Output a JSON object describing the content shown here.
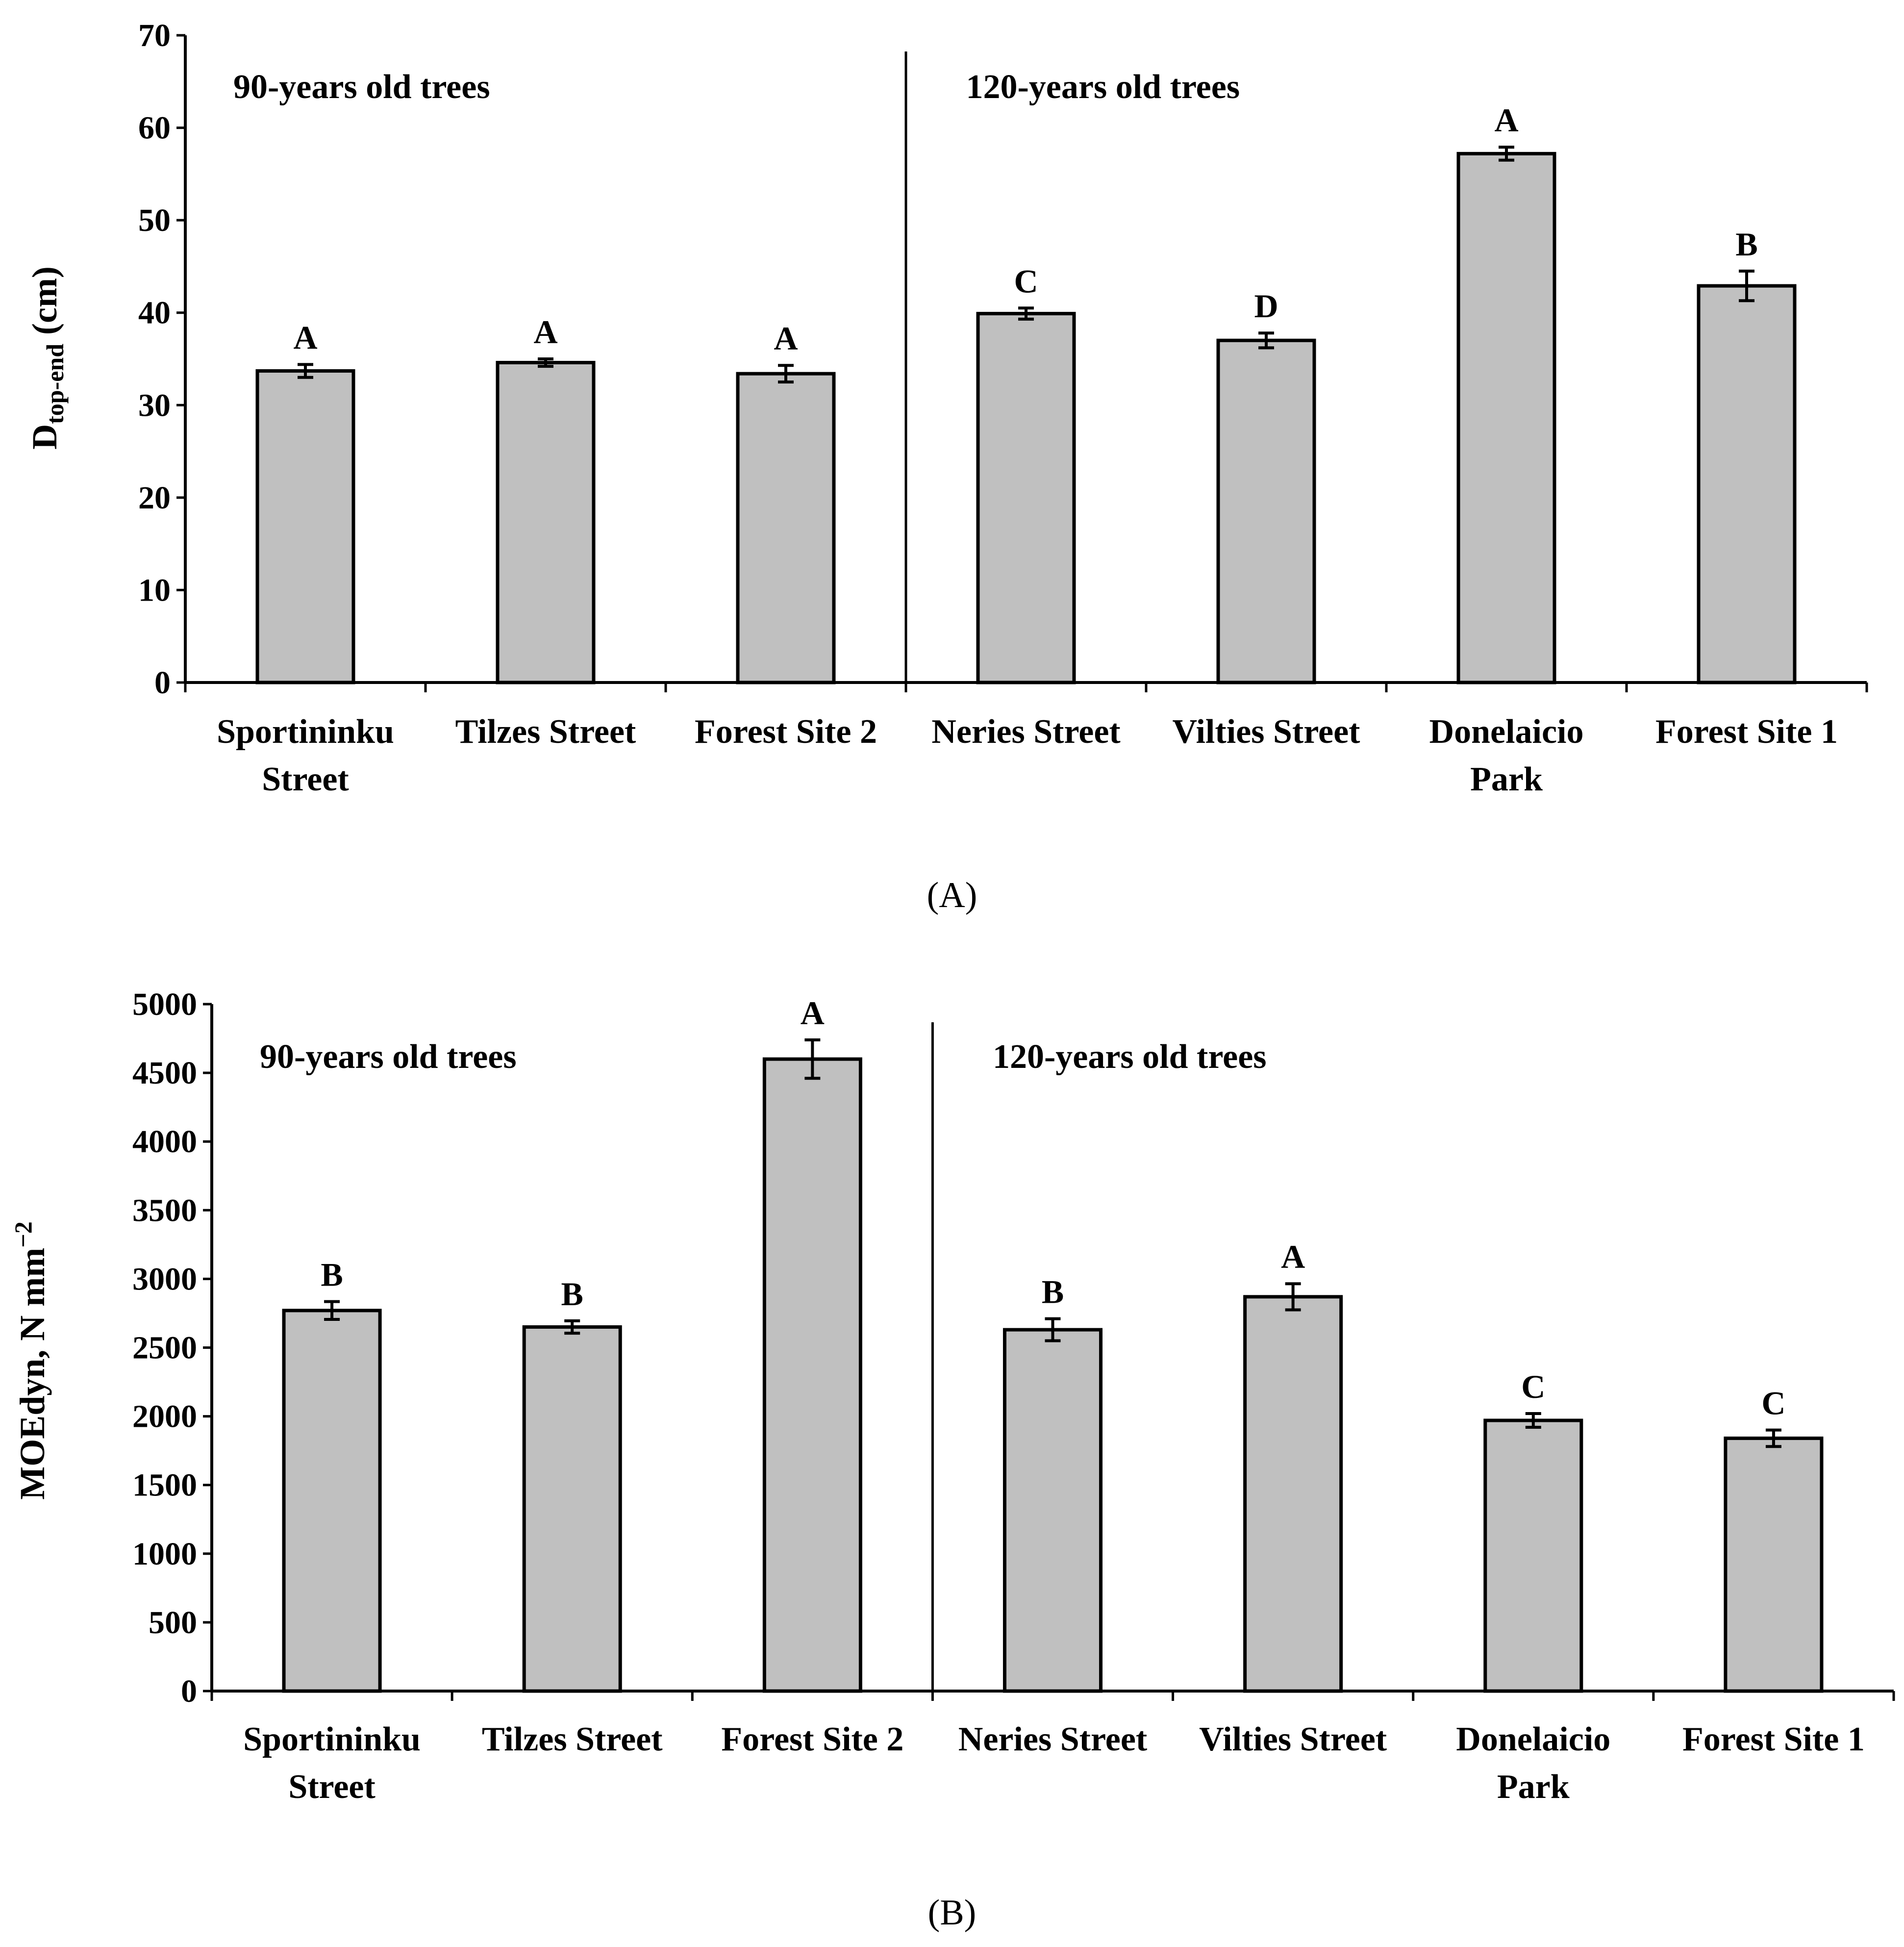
{
  "chart_data": [
    {
      "type": "bar",
      "panel_label": "(A)",
      "ylabel": "D",
      "ylabel_sub": "top-end",
      "ylabel_suffix": " (cm)",
      "ylim": [
        0,
        70
      ],
      "yticks": [
        0,
        10,
        20,
        30,
        40,
        50,
        60,
        70
      ],
      "groups": [
        {
          "label": "90-years old trees",
          "count": 3
        },
        {
          "label": "120-years old trees",
          "count": 4
        }
      ],
      "categories": [
        [
          "Sportininku",
          "Street"
        ],
        [
          "Tilzes Street"
        ],
        [
          "Forest Site 2"
        ],
        [
          "Neries Street"
        ],
        [
          "Vilties Street"
        ],
        [
          "Donelaicio",
          "Park"
        ],
        [
          "Forest Site 1"
        ]
      ],
      "values": [
        33.7,
        34.6,
        33.4,
        39.9,
        37.0,
        57.2,
        42.9
      ],
      "errors": [
        0.7,
        0.4,
        0.9,
        0.6,
        0.8,
        0.7,
        1.6
      ],
      "letters": [
        "A",
        "A",
        "A",
        "C",
        "D",
        "A",
        "B"
      ],
      "bar_color": "#c0c0c0"
    },
    {
      "type": "bar",
      "panel_label": "(B)",
      "ylabel": "MOEdyn, N mm",
      "ylabel_sup": "−2",
      "ylim": [
        0,
        5000
      ],
      "yticks": [
        0,
        500,
        1000,
        1500,
        2000,
        2500,
        3000,
        3500,
        4000,
        4500,
        5000
      ],
      "groups": [
        {
          "label": "90-years old trees",
          "count": 3
        },
        {
          "label": "120-years old trees",
          "count": 4
        }
      ],
      "categories": [
        [
          "Sportininku",
          "Street"
        ],
        [
          "Tilzes Street"
        ],
        [
          "Forest Site 2"
        ],
        [
          "Neries Street"
        ],
        [
          "Vilties Street"
        ],
        [
          "Donelaicio",
          "Park"
        ],
        [
          "Forest Site 1"
        ]
      ],
      "values": [
        2770,
        2650,
        4600,
        2630,
        2870,
        1970,
        1840
      ],
      "errors": [
        65,
        45,
        140,
        80,
        95,
        50,
        60
      ],
      "letters": [
        "B",
        "B",
        "A",
        "B",
        "A",
        "C",
        "C"
      ],
      "bar_color": "#c0c0c0"
    }
  ]
}
